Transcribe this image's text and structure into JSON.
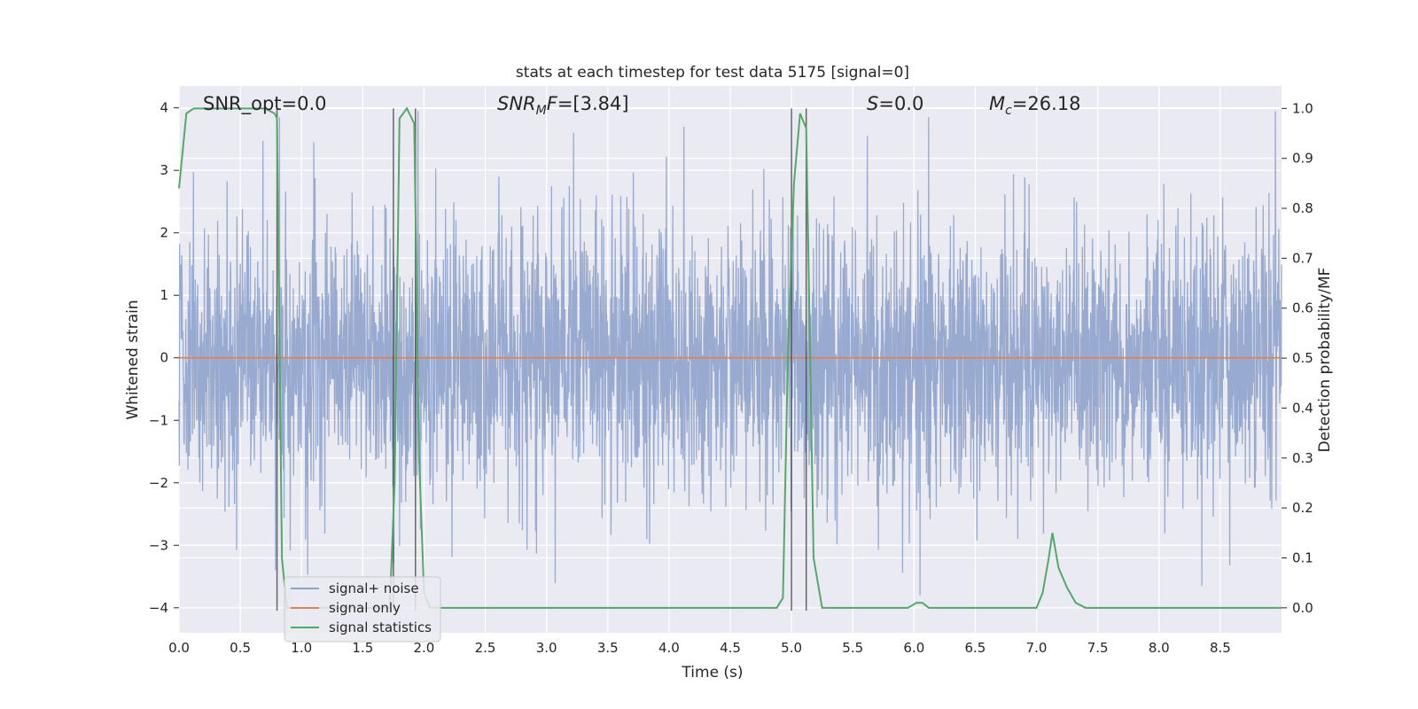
{
  "chart_data": {
    "type": "line",
    "title": "stats at each timestep for test data 5175 [signal=0]",
    "xlabel": "Time (s)",
    "ylabel": "Whitened strain",
    "y2label": "Detection probability/MF",
    "xlim": [
      0.0,
      9.0
    ],
    "ylim": [
      -4.4,
      4.35
    ],
    "y2lim": [
      -0.05,
      1.045
    ],
    "xticks": [
      "0.0",
      "0.5",
      "1.0",
      "1.5",
      "2.0",
      "2.5",
      "3.0",
      "3.5",
      "4.0",
      "4.5",
      "5.0",
      "5.5",
      "6.0",
      "6.5",
      "7.0",
      "7.5",
      "8.0",
      "8.5"
    ],
    "yticks": [
      "4",
      "3",
      "2",
      "1",
      "0",
      "−1",
      "−2",
      "−3",
      "−4"
    ],
    "y2ticks": [
      "1.0",
      "0.9",
      "0.8",
      "0.7",
      "0.6",
      "0.5",
      "0.4",
      "0.3",
      "0.2",
      "0.1",
      "0.0"
    ],
    "grid": true,
    "legend_position": "lower-left",
    "annotations": {
      "snr_opt": "SNR_opt=0.0",
      "snr_mf": "SNR_MF=[3.84]",
      "s": "S=0.0",
      "mc": "M_c=26.18"
    },
    "series": [
      {
        "name": "signal+ noise",
        "color": "#8fa3cc",
        "axis": "left",
        "description_values": "whitened noise, approx. gaussian with sigma 1, peaks to about ±4",
        "peaks": [
          {
            "x": 0.82,
            "y": 3.85
          },
          {
            "x": 1.1,
            "y": 3.45
          },
          {
            "x": 1.95,
            "y": 3.95
          },
          {
            "x": 3.22,
            "y": 3.6
          },
          {
            "x": 4.12,
            "y": 3.7
          },
          {
            "x": 5.62,
            "y": 3.55
          },
          {
            "x": 6.12,
            "y": 3.85
          },
          {
            "x": 8.95,
            "y": 3.95
          },
          {
            "x": 6.05,
            "y": -3.8
          },
          {
            "x": 8.35,
            "y": -3.65
          },
          {
            "x": 3.07,
            "y": -3.6
          }
        ]
      },
      {
        "name": "signal only",
        "color": "#dd8452",
        "axis": "left",
        "x": [
          0.0,
          9.0
        ],
        "y": [
          0.0,
          0.0
        ]
      },
      {
        "name": "signal statistics",
        "color": "#55a868",
        "axis": "right",
        "x": [
          0.0,
          0.06,
          0.12,
          0.25,
          0.5,
          0.7,
          0.78,
          0.8,
          0.84,
          0.88,
          1.0,
          1.5,
          1.72,
          1.76,
          1.8,
          1.86,
          1.92,
          1.96,
          2.0,
          2.05,
          2.1,
          3.0,
          4.0,
          4.88,
          4.93,
          4.97,
          5.02,
          5.07,
          5.12,
          5.18,
          5.25,
          5.5,
          5.95,
          6.02,
          6.07,
          6.12,
          6.2,
          6.5,
          7.0,
          7.05,
          7.1,
          7.13,
          7.18,
          7.25,
          7.32,
          7.4,
          7.8,
          8.5,
          9.0
        ],
        "y": [
          0.84,
          0.99,
          1.0,
          1.0,
          1.0,
          1.0,
          0.99,
          0.98,
          0.1,
          0.0,
          0.0,
          0.0,
          0.0,
          0.25,
          0.98,
          1.0,
          0.97,
          0.3,
          0.03,
          0.0,
          0.0,
          0.0,
          0.0,
          0.0,
          0.02,
          0.5,
          0.85,
          0.99,
          0.96,
          0.1,
          0.0,
          0.0,
          0.0,
          0.01,
          0.01,
          0.0,
          0.0,
          0.0,
          0.0,
          0.03,
          0.1,
          0.15,
          0.08,
          0.04,
          0.01,
          0.0,
          0.0,
          0.0,
          0.0
        ]
      }
    ],
    "vertical_lines": [
      0.8,
      1.75,
      1.93,
      5.0,
      5.12
    ]
  }
}
